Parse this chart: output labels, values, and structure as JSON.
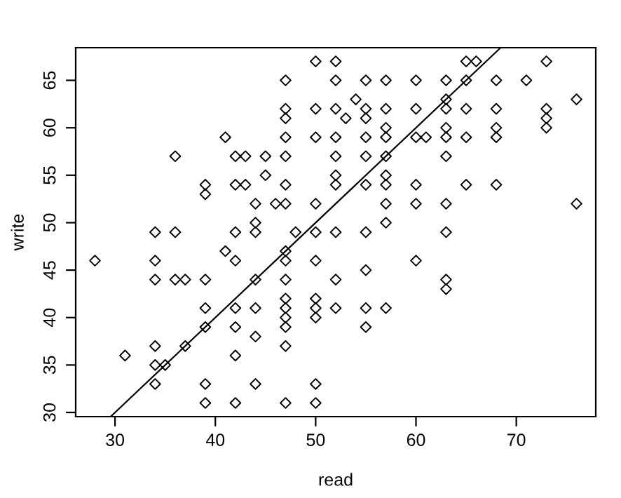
{
  "chart_data": {
    "type": "scatter",
    "xlabel": "read",
    "ylabel": "write",
    "xlim": [
      26.08,
      77.92
    ],
    "ylim": [
      29.56,
      68.44
    ],
    "xticks": [
      30,
      40,
      50,
      60,
      70
    ],
    "yticks": [
      30,
      35,
      40,
      45,
      50,
      55,
      60,
      65
    ],
    "grid": false,
    "legend": false,
    "series": [
      {
        "color": "#000000",
        "marker": "diamond",
        "x": [
          28,
          31,
          34,
          34,
          34,
          34,
          34,
          34,
          35,
          36,
          36,
          36,
          37,
          37,
          39,
          39,
          39,
          39,
          39,
          39,
          39,
          41,
          42,
          43,
          45,
          47,
          47,
          47,
          47,
          47,
          50,
          52,
          52,
          50,
          52,
          52,
          50,
          54,
          53,
          55,
          55,
          55,
          57,
          57,
          57,
          57,
          55,
          55,
          57,
          52,
          42,
          43,
          45,
          47,
          52,
          52,
          55,
          57,
          57,
          44,
          46,
          47,
          50,
          57,
          57,
          42,
          44,
          44,
          48,
          50,
          52,
          55,
          41,
          42,
          47,
          47,
          50,
          55,
          44,
          47,
          52,
          42,
          44,
          47,
          47,
          47,
          47,
          50,
          50,
          50,
          52,
          55,
          57,
          42,
          44,
          55,
          42,
          47,
          44,
          50,
          42,
          47,
          50,
          65,
          66,
          73,
          60,
          63,
          65,
          68,
          71,
          60,
          63,
          63,
          65,
          68,
          73,
          73,
          73,
          76,
          60,
          61,
          63,
          63,
          65,
          68,
          68,
          63,
          60,
          65,
          68,
          60,
          63,
          76,
          63,
          60,
          63,
          63
        ],
        "values": [
          46,
          36,
          49,
          46,
          44,
          37,
          35,
          33,
          35,
          57,
          49,
          44,
          44,
          37,
          54,
          53,
          44,
          41,
          39,
          33,
          31,
          59,
          57,
          57,
          57,
          57,
          65,
          62,
          61,
          59,
          67,
          67,
          65,
          62,
          62,
          59,
          59,
          63,
          61,
          62,
          61,
          65,
          65,
          62,
          60,
          59,
          59,
          57,
          57,
          57,
          54,
          54,
          55,
          54,
          55,
          54,
          54,
          55,
          54,
          52,
          52,
          52,
          52,
          52,
          50,
          49,
          50,
          49,
          49,
          49,
          49,
          49,
          47,
          46,
          47,
          46,
          46,
          45,
          44,
          44,
          44,
          41,
          41,
          42,
          41,
          40,
          39,
          42,
          41,
          40,
          41,
          41,
          41,
          39,
          38,
          39,
          36,
          37,
          33,
          33,
          31,
          31,
          31,
          67,
          67,
          67,
          65,
          65,
          65,
          65,
          65,
          62,
          63,
          62,
          62,
          62,
          62,
          61,
          60,
          63,
          59,
          59,
          60,
          59,
          59,
          60,
          59,
          57,
          54,
          54,
          54,
          52,
          52,
          52,
          49,
          46,
          44,
          43
        ]
      },
      {
        "type": "line",
        "color": "#000000",
        "marker": "none",
        "line_style": "solid",
        "x": [
          29.6,
          68.4
        ],
        "values": [
          29.6,
          68.4
        ]
      }
    ]
  }
}
